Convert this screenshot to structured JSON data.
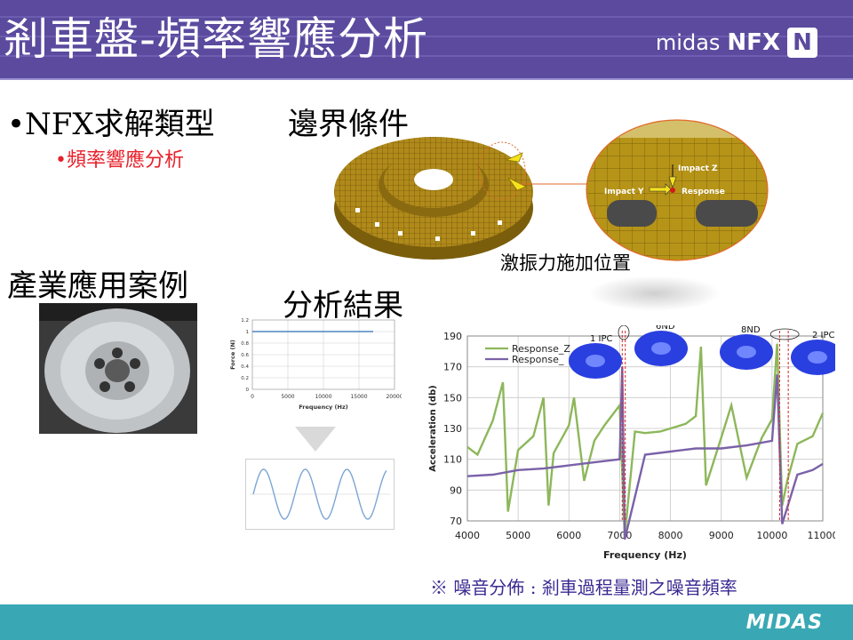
{
  "header": {
    "title": "剎車盤-頻率響應分析",
    "logo_brand": "midas",
    "logo_product": "NFX",
    "logo_mark": "N"
  },
  "left": {
    "heading1": "•NFX求解類型",
    "sub1": "•頻率響應分析",
    "heading2": "產業應用案例"
  },
  "mid": {
    "boundary_heading": "邊界條件",
    "excitation_caption": "激振力施加位置",
    "results_heading": "分析結果"
  },
  "detail": {
    "impact_z": "Impact Z",
    "impact_y": "Impact Y",
    "response": "Response"
  },
  "force_chart": {
    "ylabel": "Force (N)",
    "xlabel": "Frequency (Hz)",
    "yticks": [
      "0",
      "0.2",
      "0.4",
      "0.6",
      "0.8",
      "1",
      "1.2"
    ],
    "xticks": [
      "0",
      "5000",
      "10000",
      "15000",
      "20000"
    ]
  },
  "main_chart": {
    "ylabel": "Acceleration (db)",
    "xlabel": "Frequency (Hz)",
    "yticks": [
      "70",
      "90",
      "110",
      "130",
      "150",
      "170",
      "190"
    ],
    "xticks": [
      "4000",
      "5000",
      "6000",
      "7000",
      "8000",
      "9000",
      "10000",
      "11000"
    ],
    "legend": [
      "Response_Z",
      "Response_"
    ],
    "modes": [
      "1 IPC",
      "6ND",
      "8ND",
      "2 IPC"
    ]
  },
  "note": "※ 噪音分佈 : 剎車過程量測之噪音頻率",
  "footer": {
    "logo": "MIDAS"
  },
  "colors": {
    "header": "#5b4a9e",
    "footer": "#3aa8b4",
    "series_z": "#8db75a",
    "series_y": "#7a62a8",
    "sub_text": "#e8202a",
    "note_text": "#3b2a92"
  },
  "chart_data": [
    {
      "type": "line",
      "title": "",
      "xlabel": "Frequency (Hz)",
      "ylabel": "Force (N)",
      "xlim": [
        0,
        20000
      ],
      "ylim": [
        0,
        1.2
      ],
      "series": [
        {
          "values_x": [
            0,
            17000
          ],
          "values_y": [
            1,
            1
          ]
        }
      ]
    },
    {
      "type": "line",
      "title": "",
      "xlabel": "Frequency (Hz)",
      "ylabel": "Acceleration (db)",
      "xlim": [
        4000,
        11000
      ],
      "ylim": [
        70,
        190
      ],
      "series": [
        {
          "name": "Response_Z",
          "x": [
            4000,
            4200,
            4500,
            4700,
            4800,
            5000,
            5300,
            5500,
            5600,
            5700,
            6000,
            6100,
            6300,
            6500,
            6700,
            7000,
            7100,
            7300,
            7500,
            7800,
            8000,
            8300,
            8500,
            8600,
            8700,
            9000,
            9200,
            9500,
            9800,
            10000,
            10100,
            10200,
            10300,
            10500,
            10800,
            11000
          ],
          "y": [
            118,
            113,
            135,
            160,
            76,
            116,
            125,
            150,
            80,
            114,
            132,
            150,
            96,
            122,
            132,
            145,
            60,
            128,
            127,
            128,
            130,
            133,
            138,
            183,
            93,
            124,
            145,
            98,
            124,
            136,
            185,
            80,
            96,
            120,
            125,
            140
          ]
        },
        {
          "name": "Response_",
          "x": [
            4000,
            4500,
            5000,
            5500,
            6000,
            6500,
            7000,
            7050,
            7100,
            7500,
            8000,
            8500,
            9000,
            9500,
            10000,
            10100,
            10200,
            10500,
            10800,
            11000
          ],
          "y": [
            99,
            100,
            103,
            104,
            106,
            108,
            110,
            170,
            58,
            113,
            115,
            117,
            117,
            119,
            122,
            165,
            68,
            100,
            103,
            107
          ]
        }
      ]
    }
  ]
}
